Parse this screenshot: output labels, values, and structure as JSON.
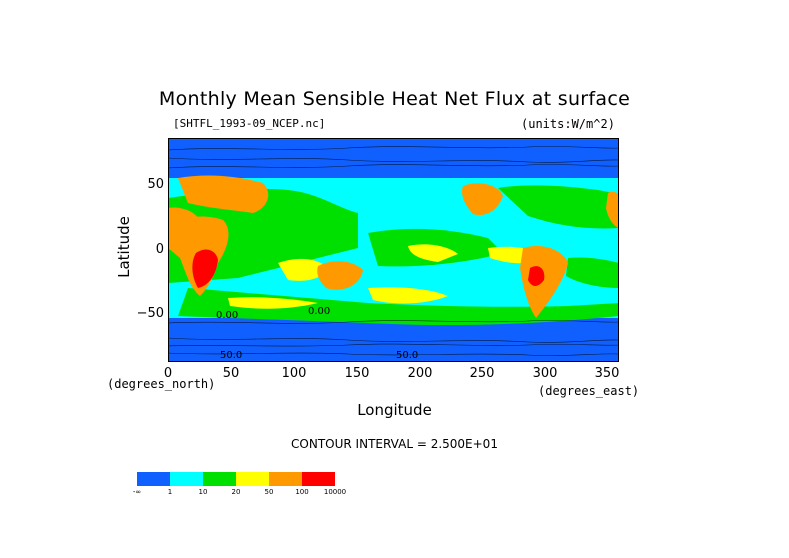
{
  "map": {
    "title": "Monthly Mean Sensible Heat Net Flux at surface",
    "file_label": "[SHTFL_1993-09_NCEP.nc]",
    "units_label": "(units:W/m^2)",
    "xlabel": "Longitude",
    "ylabel": "Latitude",
    "x_units": "(degrees_east)",
    "y_units": "(degrees_north)",
    "x_ticks": [
      "0",
      "50",
      "100",
      "150",
      "200",
      "250",
      "300",
      "350"
    ],
    "y_ticks": [
      "50",
      "0",
      "−50"
    ],
    "x_range": [
      0,
      360
    ],
    "y_range": [
      -90,
      90
    ],
    "contour_interval": "CONTOUR INTERVAL = 2.500E+01",
    "contour_labels": [
      "0.00",
      "0.00",
      "50.0",
      "50.0"
    ],
    "legend": {
      "colors": [
        "#1060ff",
        "#00ffff",
        "#00e000",
        "#ffff00",
        "#ff9900",
        "#ff0000"
      ],
      "labels": [
        "-∞",
        "1",
        "10",
        "20",
        "50",
        "100",
        "10000"
      ]
    },
    "colors": {
      "ocean_blue": "#1060ff",
      "cyan": "#00ffff",
      "green": "#00e000",
      "yellow": "#ffff00",
      "orange": "#ff9900",
      "red": "#ff0000",
      "dark_blue": "#0000cc"
    }
  }
}
